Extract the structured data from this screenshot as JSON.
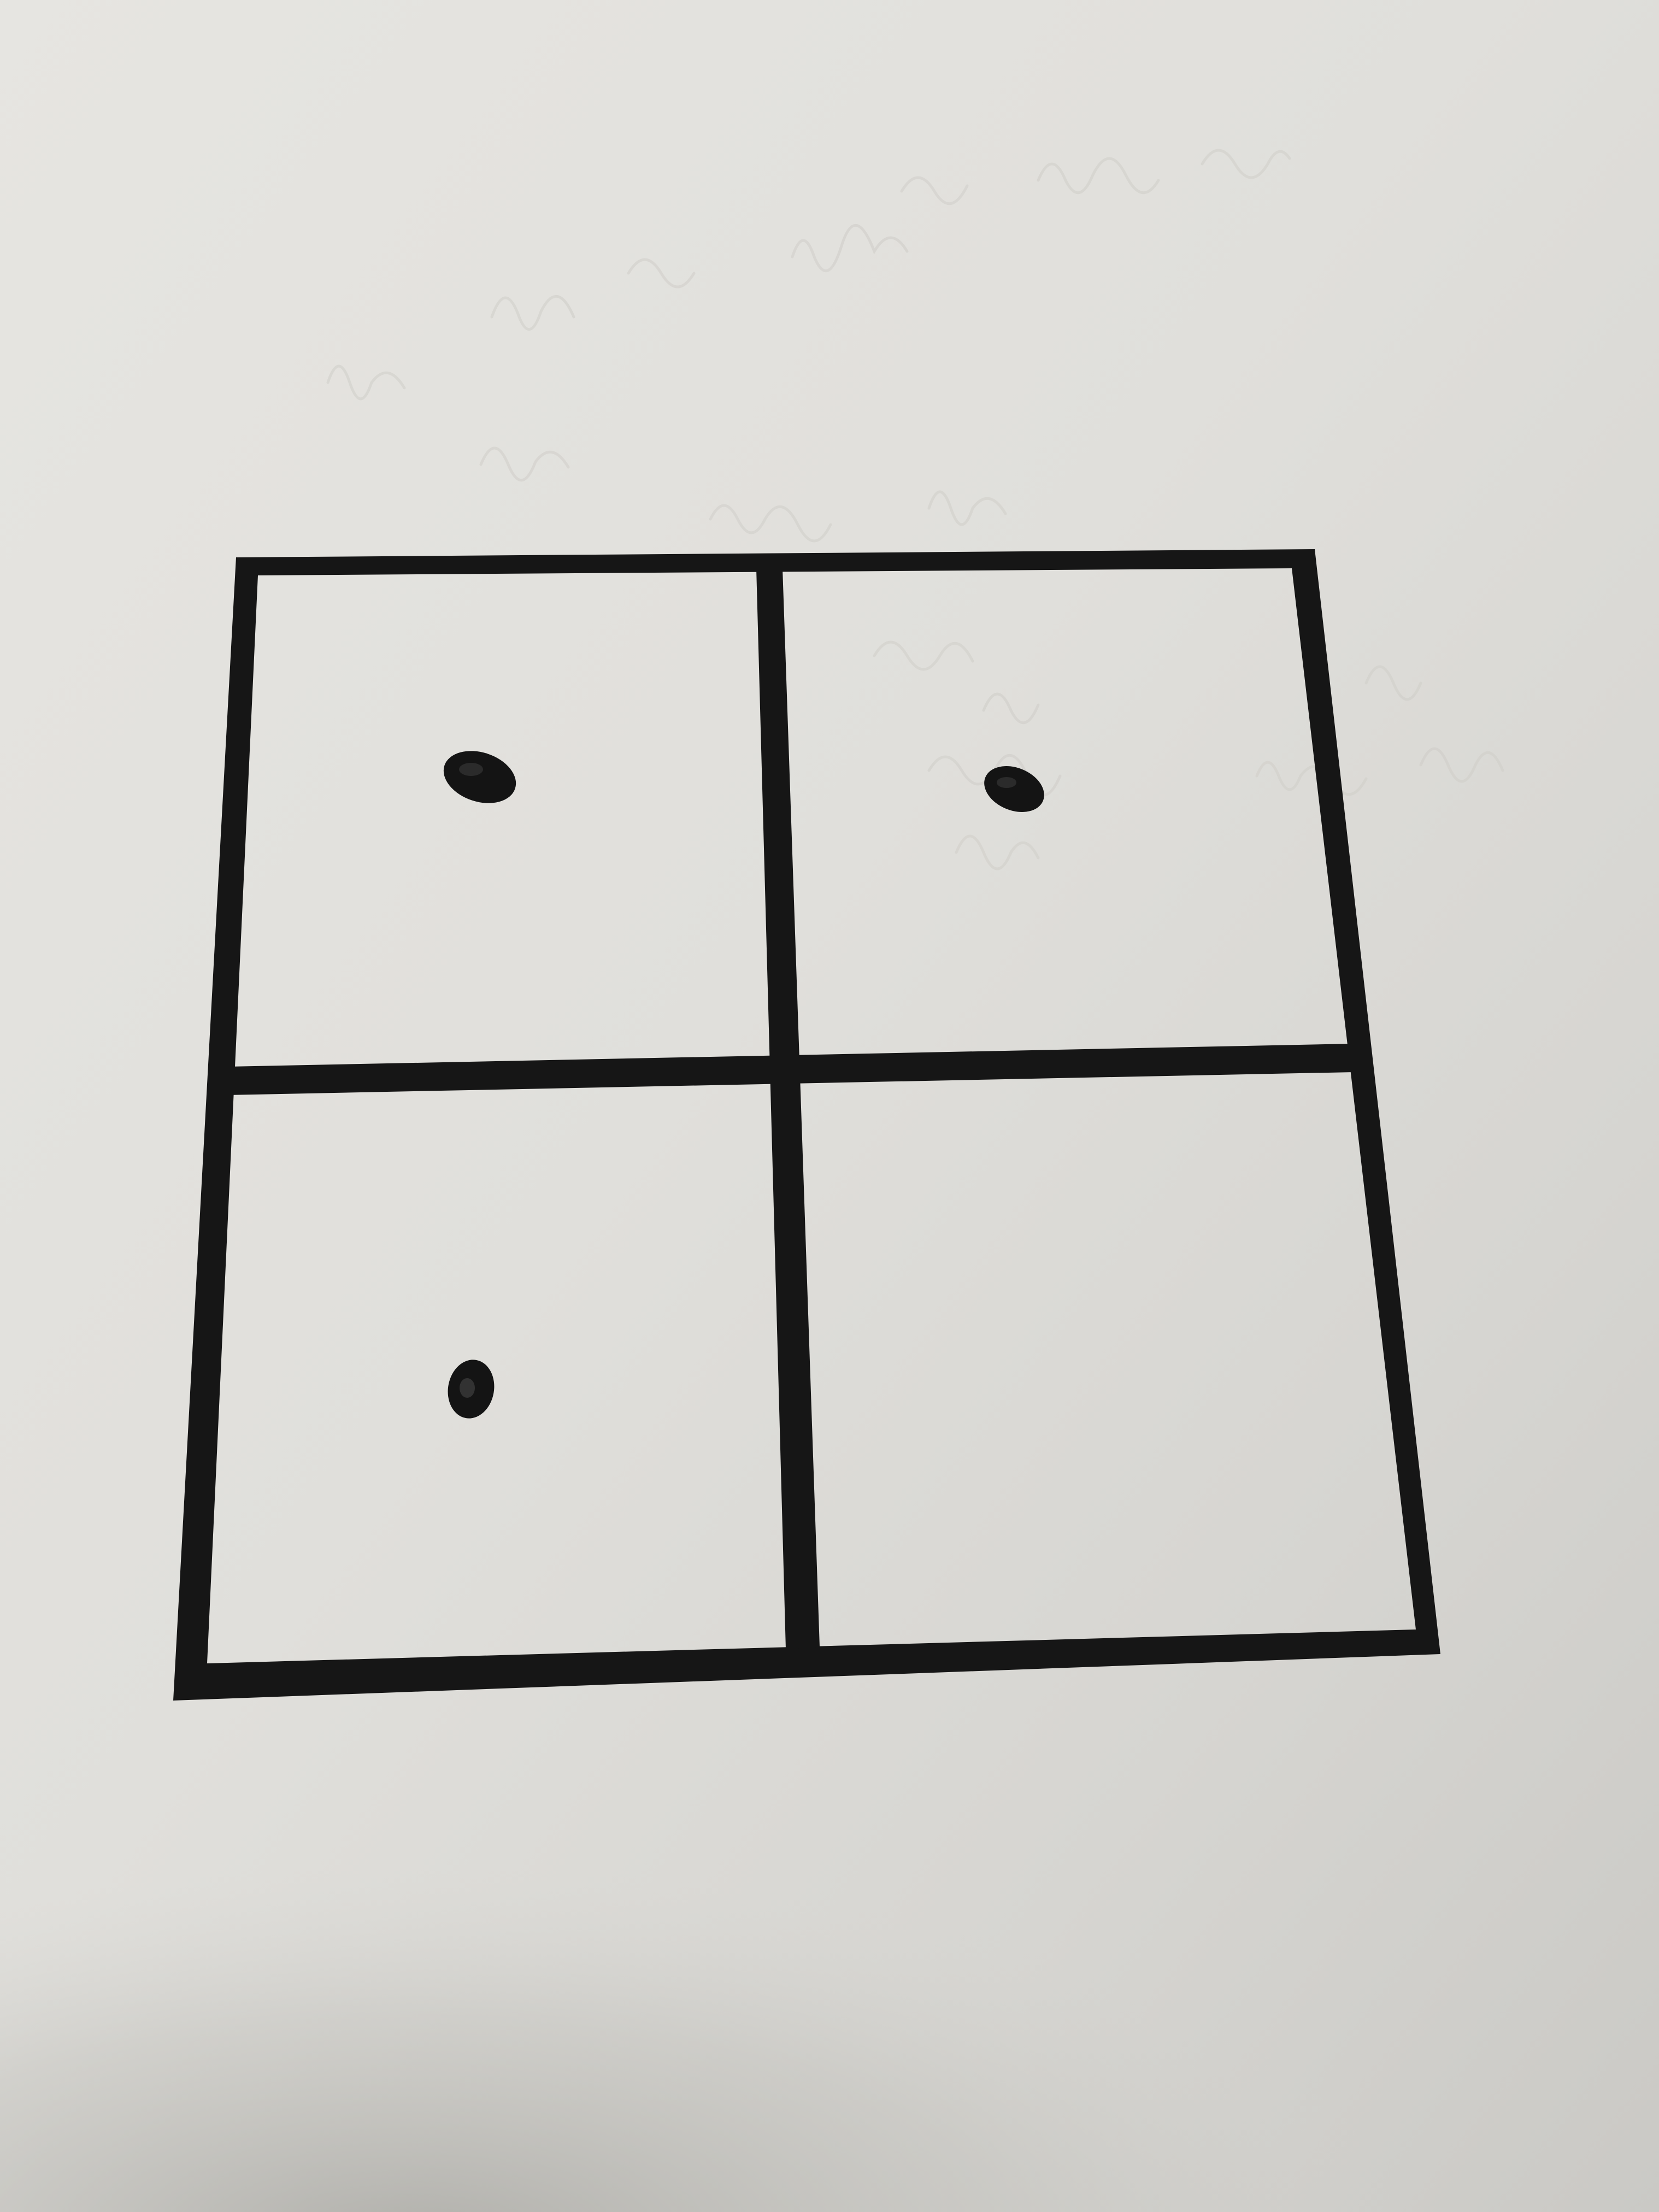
{
  "scene": {
    "description_kind": "photo-of-paper",
    "paper_color": "#e4e3df",
    "shadow_color": "#b9b8b3",
    "line_color": "#151515",
    "dot_color": "#141414"
  },
  "grid": {
    "rows": 2,
    "cols": 2,
    "cells": [
      {
        "id": "top-left",
        "dot_count": 1
      },
      {
        "id": "top-right",
        "dot_count": 1
      },
      {
        "id": "bottom-left",
        "dot_count": 1
      },
      {
        "id": "bottom-right",
        "dot_count": 0
      }
    ]
  }
}
